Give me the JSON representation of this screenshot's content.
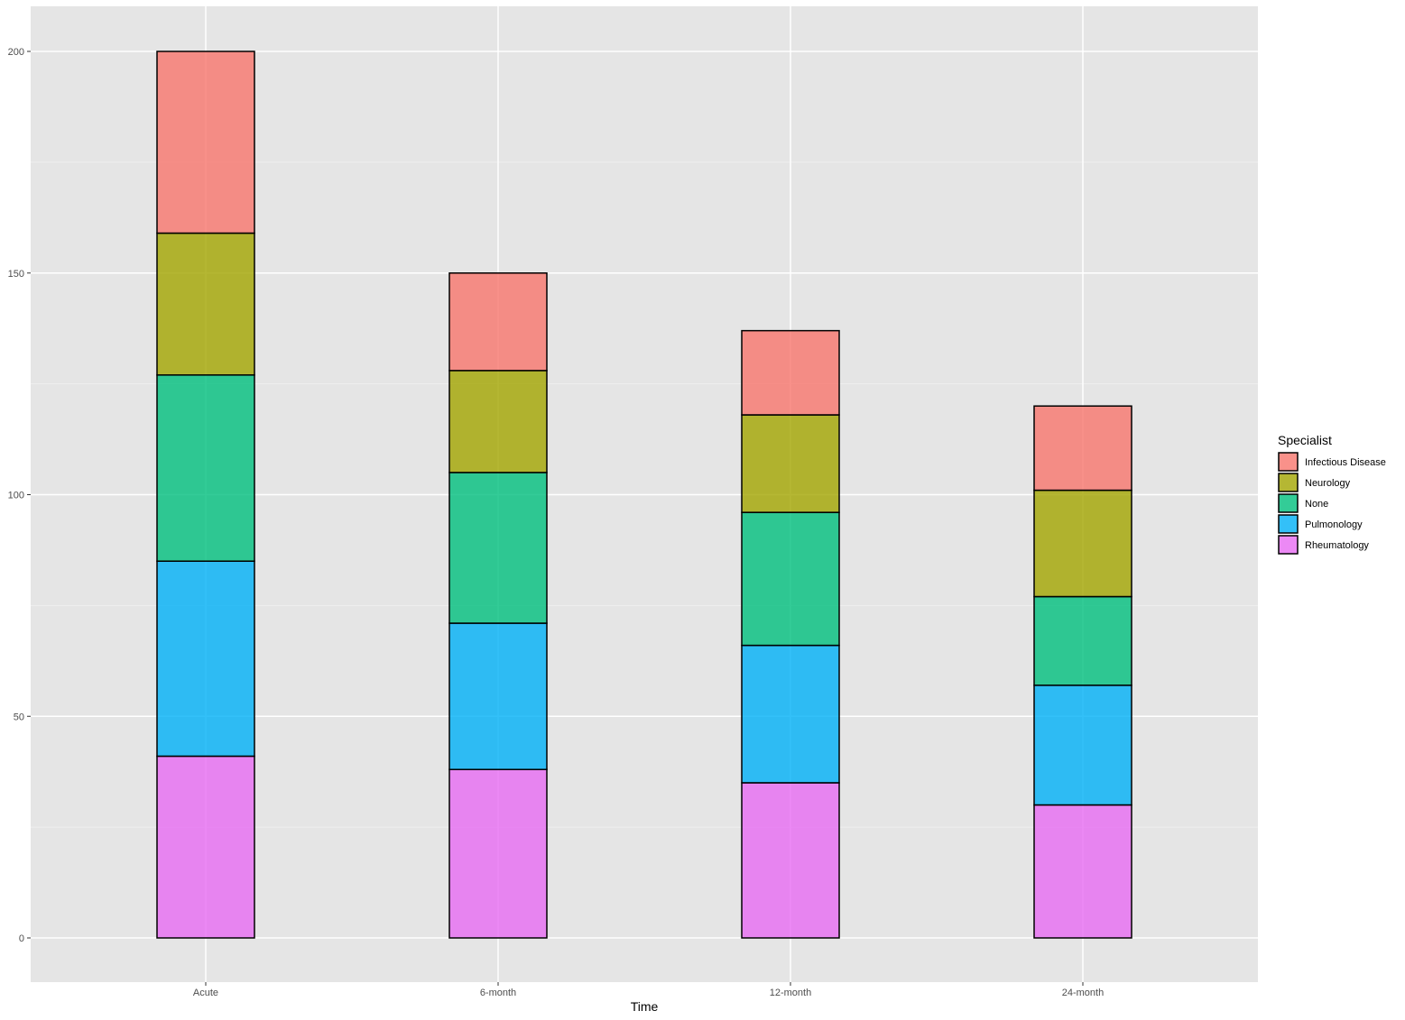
{
  "chart_data": {
    "type": "bar",
    "stacked": true,
    "xlabel": "Time",
    "ylabel": "",
    "ylim": [
      0,
      200
    ],
    "yticks": [
      0,
      50,
      100,
      150,
      200
    ],
    "categories": [
      "Acute",
      "6-month",
      "12-month",
      "24-month"
    ],
    "series": [
      {
        "name": "Rheumatology",
        "color": "#E76BF3",
        "values": [
          41,
          38,
          35,
          30
        ]
      },
      {
        "name": "Pulmonology",
        "color": "#00B0F6",
        "values": [
          44,
          33,
          31,
          27
        ]
      },
      {
        "name": "None",
        "color": "#00BF7D",
        "values": [
          42,
          34,
          30,
          20
        ]
      },
      {
        "name": "Neurology",
        "color": "#A3A500",
        "values": [
          32,
          23,
          22,
          24
        ]
      },
      {
        "name": "Infectious Disease",
        "color": "#F8766D",
        "values": [
          41,
          22,
          19,
          19
        ]
      }
    ],
    "legend": {
      "title": "Specialist",
      "position": "right",
      "order": [
        "Infectious Disease",
        "Neurology",
        "None",
        "Pulmonology",
        "Rheumatology"
      ]
    },
    "grid": true,
    "panel_background": "#E5E5E5"
  }
}
